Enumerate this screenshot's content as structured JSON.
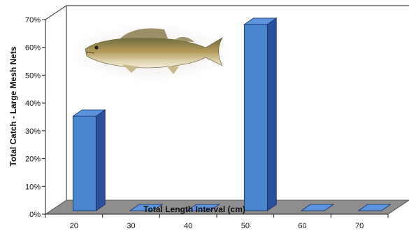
{
  "chart_data": {
    "type": "bar",
    "style": "3d-column",
    "categories": [
      "20",
      "30",
      "40",
      "50",
      "60",
      "70"
    ],
    "values": [
      34,
      0,
      0,
      67,
      0,
      0
    ],
    "xlabel": "Total Length Interval (cm)",
    "ylabel": "Total Catch - Large Mesh Nets",
    "ylim": [
      0,
      70
    ],
    "yticks": [
      "0%",
      "10%",
      "20%",
      "30%",
      "40%",
      "50%",
      "60%",
      "70%"
    ],
    "grid": false,
    "legend": "none",
    "colors": {
      "bar_front": "#4a86cf",
      "bar_top": "#5b94dc",
      "bar_side": "#2b4f9a",
      "floor": "#8e8e8e",
      "wall": "#ffffff"
    },
    "image": {
      "icon": "walleye-fish-photo"
    }
  }
}
